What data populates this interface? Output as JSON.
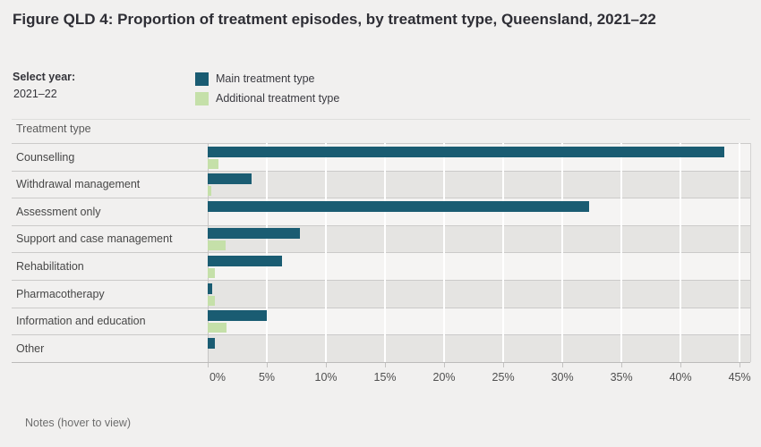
{
  "title": "Figure QLD 4: Proportion of treatment episodes, by treatment type, Queensland, 2021–22",
  "year_selector": {
    "label": "Select year:",
    "value": "2021–22"
  },
  "legend": [
    {
      "label": "Main treatment type",
      "color": "#1a5c72"
    },
    {
      "label": "Additional treatment type",
      "color": "#c5e0a9"
    }
  ],
  "row_header": "Treatment type",
  "notes_text": "Notes (hover to view)",
  "colors": {
    "main_bar": "#1a5c72",
    "additional_bar": "#c5e0a9",
    "band_light": "#f5f4f3",
    "band_dark": "#e5e4e2",
    "background": "#f1f0ef"
  },
  "chart_data": {
    "type": "bar",
    "orientation": "horizontal",
    "title": "Figure QLD 4: Proportion of treatment episodes, by treatment type, Queensland, 2021–22",
    "categories": [
      "Counselling",
      "Withdrawal management",
      "Assessment only",
      "Support and case management",
      "Rehabilitation",
      "Pharmacotherapy",
      "Information and education",
      "Other"
    ],
    "series": [
      {
        "name": "Main treatment type",
        "color": "#1a5c72",
        "values": [
          43.7,
          3.7,
          32.3,
          7.8,
          6.3,
          0.4,
          5.0,
          0.6
        ]
      },
      {
        "name": "Additional treatment type",
        "color": "#c5e0a9",
        "values": [
          0.9,
          0.3,
          0,
          1.5,
          0.6,
          0.6,
          1.6,
          0
        ]
      }
    ],
    "x_ticks": [
      "0%",
      "5%",
      "10%",
      "15%",
      "20%",
      "25%",
      "30%",
      "35%",
      "40%",
      "45%"
    ],
    "x_tick_values": [
      0,
      5,
      10,
      15,
      20,
      25,
      30,
      35,
      40,
      45
    ],
    "xlim": [
      0,
      45.9
    ],
    "unit": "percent",
    "grid": true,
    "legend_position": "top"
  }
}
